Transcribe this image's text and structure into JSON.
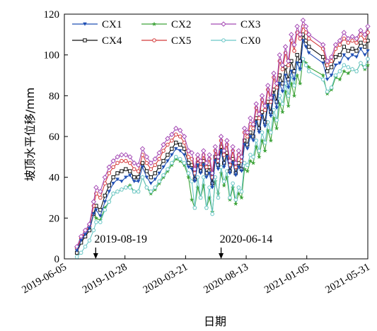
{
  "chart_data": {
    "type": "line",
    "xlabel": "日期",
    "ylabel": "坡顶水平位移/mm",
    "x_ticks": [
      "2019-06-05",
      "2019-10-28",
      "2020-03-21",
      "2020-08-13",
      "2021-01-05",
      "2021-05-31"
    ],
    "x_range": [
      "2019-06-05",
      "2021-05-31"
    ],
    "ylim": [
      0,
      120
    ],
    "y_ticks": [
      0,
      20,
      40,
      60,
      80,
      100,
      120
    ],
    "legend_position": "top-left",
    "grid": false,
    "annotations": [
      {
        "label": "2019-08-19",
        "date": "2019-08-19"
      },
      {
        "label": "2020-06-14",
        "date": "2020-06-14"
      }
    ],
    "x": [
      "2019-07-05",
      "2019-07-15",
      "2019-07-25",
      "2019-08-04",
      "2019-08-14",
      "2019-08-20",
      "2019-08-30",
      "2019-09-10",
      "2019-09-20",
      "2019-09-30",
      "2019-10-10",
      "2019-10-20",
      "2019-10-30",
      "2019-11-09",
      "2019-11-19",
      "2019-11-29",
      "2019-12-09",
      "2019-12-19",
      "2019-12-29",
      "2020-01-08",
      "2020-01-18",
      "2020-01-28",
      "2020-02-07",
      "2020-02-17",
      "2020-02-27",
      "2020-03-08",
      "2020-03-18",
      "2020-03-28",
      "2020-04-05",
      "2020-04-12",
      "2020-04-19",
      "2020-04-26",
      "2020-05-03",
      "2020-05-10",
      "2020-05-17",
      "2020-05-24",
      "2020-05-31",
      "2020-06-07",
      "2020-06-14",
      "2020-06-21",
      "2020-06-28",
      "2020-07-05",
      "2020-07-12",
      "2020-07-19",
      "2020-07-26",
      "2020-08-02",
      "2020-08-09",
      "2020-08-16",
      "2020-08-23",
      "2020-08-30",
      "2020-09-06",
      "2020-09-13",
      "2020-09-20",
      "2020-09-27",
      "2020-10-04",
      "2020-10-11",
      "2020-10-18",
      "2020-10-25",
      "2020-11-01",
      "2020-11-08",
      "2020-11-15",
      "2020-11-22",
      "2020-11-29",
      "2020-12-06",
      "2020-12-13",
      "2020-12-20",
      "2020-12-27",
      "2021-01-03",
      "2021-01-10",
      "2021-02-13",
      "2021-02-23",
      "2021-03-05",
      "2021-03-15",
      "2021-03-25",
      "2021-04-04",
      "2021-04-14",
      "2021-04-24",
      "2021-05-04",
      "2021-05-14",
      "2021-05-24",
      "2021-05-31"
    ],
    "series": [
      {
        "name": "CX1",
        "color": "#1f4fb4",
        "marker": "triangle-down",
        "values": [
          4,
          9,
          12,
          15,
          22,
          24,
          21,
          28,
          33,
          37,
          39,
          38,
          40,
          41,
          38,
          38,
          45,
          40,
          37,
          39,
          42,
          45,
          48,
          51,
          54,
          53,
          51,
          45,
          44,
          38,
          46,
          42,
          46,
          40,
          42,
          35,
          48,
          44,
          53,
          45,
          50,
          42,
          47,
          41,
          45,
          43,
          56,
          54,
          60,
          58,
          67,
          62,
          70,
          65,
          75,
          70,
          80,
          74,
          86,
          82,
          90,
          84,
          92,
          88,
          96,
          93,
          107,
          104,
          101,
          96,
          88,
          90,
          95,
          96,
          100,
          98,
          100,
          99,
          103,
          100,
          102
        ]
      },
      {
        "name": "CX2",
        "color": "#3fa33a",
        "marker": "star",
        "values": [
          5,
          9,
          13,
          15,
          22,
          20,
          19,
          25,
          28,
          32,
          33,
          34,
          35,
          36,
          33,
          33,
          40,
          35,
          32,
          34,
          37,
          40,
          43,
          46,
          49,
          48,
          46,
          40,
          29,
          25,
          35,
          30,
          36,
          25,
          30,
          23,
          38,
          32,
          42,
          36,
          40,
          29,
          35,
          27,
          32,
          30,
          44,
          43,
          48,
          47,
          55,
          50,
          58,
          53,
          63,
          58,
          69,
          64,
          76,
          72,
          82,
          75,
          86,
          80,
          90,
          86,
          98,
          96,
          94,
          90,
          81,
          83,
          89,
          88,
          92,
          91,
          93,
          92,
          96,
          93,
          95
        ]
      },
      {
        "name": "CX3",
        "color": "#a54ab5",
        "marker": "diamond",
        "values": [
          6,
          11,
          14,
          17,
          28,
          35,
          33,
          40,
          45,
          48,
          50,
          51,
          51,
          50,
          47,
          46,
          54,
          50,
          47,
          49,
          52,
          56,
          59,
          61,
          64,
          63,
          60,
          53,
          52,
          44,
          51,
          48,
          53,
          47,
          51,
          42,
          55,
          50,
          60,
          53,
          58,
          48,
          55,
          47,
          53,
          50,
          64,
          62,
          69,
          66,
          76,
          71,
          80,
          75,
          85,
          79,
          91,
          86,
          100,
          95,
          104,
          97,
          110,
          105,
          114,
          110,
          117,
          114,
          110,
          105,
          97,
          99,
          105,
          107,
          111,
          108,
          109,
          108,
          112,
          110,
          114
        ]
      },
      {
        "name": "CX4",
        "color": "#111111",
        "marker": "square",
        "values": [
          3,
          8,
          11,
          14,
          22,
          26,
          24,
          31,
          36,
          40,
          42,
          43,
          44,
          43,
          40,
          40,
          47,
          43,
          40,
          42,
          45,
          48,
          51,
          54,
          57,
          56,
          54,
          47,
          46,
          39,
          47,
          43,
          48,
          42,
          45,
          37,
          50,
          46,
          55,
          47,
          52,
          43,
          49,
          42,
          47,
          44,
          58,
          56,
          62,
          60,
          69,
          64,
          72,
          67,
          77,
          72,
          83,
          77,
          90,
          86,
          94,
          88,
          97,
          92,
          100,
          97,
          110,
          107,
          104,
          99,
          92,
          94,
          99,
          100,
          104,
          102,
          103,
          102,
          106,
          104,
          107
        ]
      },
      {
        "name": "CX5",
        "color": "#d43a3a",
        "marker": "circle",
        "values": [
          5,
          10,
          13,
          16,
          26,
          32,
          30,
          37,
          42,
          45,
          47,
          48,
          48,
          47,
          44,
          43,
          51,
          47,
          44,
          46,
          49,
          53,
          56,
          58,
          61,
          60,
          57,
          50,
          49,
          42,
          49,
          45,
          51,
          45,
          49,
          40,
          53,
          48,
          58,
          51,
          56,
          46,
          53,
          45,
          51,
          48,
          62,
          60,
          66,
          64,
          74,
          69,
          78,
          73,
          83,
          77,
          89,
          84,
          97,
          93,
          101,
          95,
          107,
          102,
          111,
          108,
          114,
          111,
          108,
          103,
          95,
          97,
          103,
          105,
          108,
          106,
          107,
          106,
          110,
          107,
          111
        ]
      },
      {
        "name": "CX0",
        "color": "#69c6c6",
        "marker": "circle-open",
        "values": [
          1,
          3,
          6,
          9,
          14,
          18,
          18,
          24,
          28,
          32,
          33,
          34,
          35,
          35,
          33,
          33,
          40,
          35,
          33,
          35,
          38,
          41,
          44,
          47,
          50,
          49,
          47,
          42,
          38,
          25,
          40,
          30,
          40,
          25,
          35,
          22,
          40,
          30,
          45,
          38,
          43,
          30,
          37,
          29,
          35,
          33,
          47,
          46,
          51,
          50,
          58,
          53,
          62,
          57,
          67,
          62,
          73,
          68,
          80,
          76,
          86,
          80,
          90,
          85,
          96,
          93,
          98,
          95,
          92,
          88,
          82,
          84,
          90,
          92,
          95,
          94,
          93,
          92,
          96,
          94,
          98
        ]
      }
    ]
  }
}
